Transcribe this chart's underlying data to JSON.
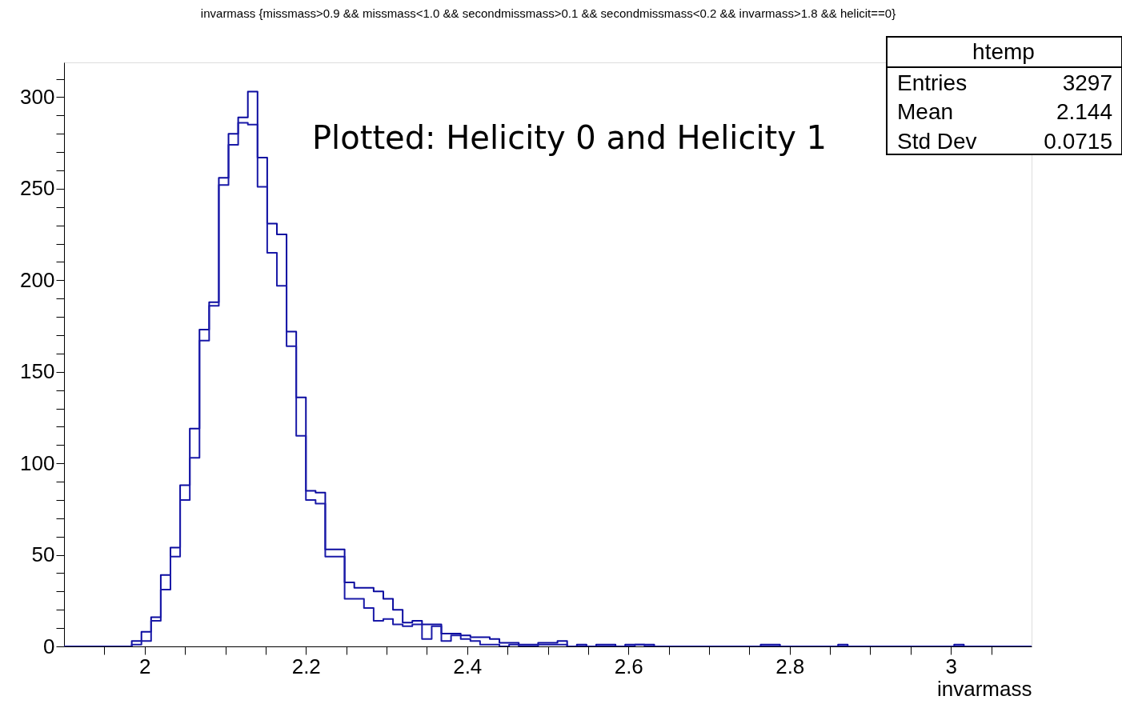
{
  "chart_data": {
    "type": "histogram",
    "title": "invarmass {missmass>0.9 && missmass<1.0 && secondmissmass>0.1 && secondmissmass<0.2 && invarmass>1.8 && helicit==0}",
    "xlabel": "invarmass",
    "bins": [
      1.9,
      1.912,
      1.924,
      1.936,
      1.948,
      1.96,
      1.972,
      1.984,
      1.996,
      2.008,
      2.02,
      2.032,
      2.044,
      2.056,
      2.068,
      2.08,
      2.092,
      2.104,
      2.116,
      2.128,
      2.14,
      2.152,
      2.164,
      2.176,
      2.188,
      2.2,
      2.212,
      2.224,
      2.236,
      2.248,
      2.26,
      2.272,
      2.284,
      2.296,
      2.308,
      2.32,
      2.332,
      2.344,
      2.356,
      2.368,
      2.38,
      2.392,
      2.404,
      2.416,
      2.428,
      2.44,
      2.452,
      2.464,
      2.476,
      2.488,
      2.5,
      2.512,
      2.524,
      2.536,
      2.548,
      2.56,
      2.572,
      2.584,
      2.596,
      2.608,
      2.62,
      2.632,
      2.644,
      2.656,
      2.668,
      2.68,
      2.692,
      2.704,
      2.716,
      2.728,
      2.74,
      2.752,
      2.764,
      2.776,
      2.788,
      2.8,
      2.812,
      2.824,
      2.836,
      2.848,
      2.86,
      2.872,
      2.884,
      2.896,
      2.908,
      2.92,
      2.932,
      2.944,
      2.956,
      2.968,
      2.98,
      2.992,
      3.004,
      3.016,
      3.028,
      3.04,
      3.052,
      3.064,
      3.076,
      3.088,
      3.1
    ],
    "series": [
      {
        "color": "#0c0ca0",
        "values": [
          0,
          0,
          0,
          0,
          0,
          0,
          0,
          3,
          8,
          16,
          39,
          54,
          88,
          119,
          173,
          188,
          256,
          280,
          289,
          303,
          267,
          231,
          225,
          172,
          136,
          85,
          84,
          53,
          53,
          35,
          32,
          32,
          30,
          26,
          20,
          13,
          14,
          12,
          12,
          7,
          7,
          6,
          5,
          5,
          4,
          2,
          2,
          1,
          1,
          2,
          2,
          3,
          0,
          1,
          0,
          1,
          1,
          0,
          1,
          1,
          1,
          0,
          0,
          0,
          0,
          0,
          0,
          0,
          0,
          0,
          0,
          0,
          1,
          1,
          0,
          0,
          0,
          0,
          0,
          0,
          1,
          0,
          0,
          0,
          0,
          0,
          0,
          0,
          0,
          0,
          0,
          0,
          1,
          0,
          0,
          0,
          0,
          0,
          0,
          0
        ]
      },
      {
        "color": "#1a1aa8",
        "values": [
          0,
          0,
          0,
          0,
          0,
          0,
          0,
          1,
          3,
          14,
          31,
          49,
          80,
          103,
          167,
          186,
          252,
          274,
          286,
          285,
          251,
          215,
          197,
          164,
          115,
          80,
          78,
          49,
          49,
          26,
          26,
          21,
          14,
          15,
          12,
          11,
          12,
          4,
          11,
          3,
          6,
          4,
          3,
          1,
          1,
          0,
          1,
          0,
          0,
          1,
          1,
          1,
          0,
          0,
          0,
          0,
          0,
          0,
          0,
          1,
          0,
          0,
          0,
          0,
          0,
          0,
          0,
          0,
          0,
          0,
          0,
          0,
          0,
          0,
          0,
          0,
          0,
          0,
          0,
          0,
          0,
          0,
          0,
          0,
          0,
          0,
          0,
          0,
          0,
          0,
          0,
          0,
          0,
          0,
          0,
          0,
          0,
          0,
          0,
          0
        ]
      }
    ],
    "xlim": [
      1.9,
      3.1
    ],
    "xticks": [
      {
        "value": 1.95,
        "label": null
      },
      2,
      {
        "value": 2.05,
        "label": null
      },
      {
        "value": 2.1,
        "label": null
      },
      {
        "value": 2.15,
        "label": null
      },
      2.2,
      {
        "value": 2.25,
        "label": null
      },
      {
        "value": 2.3,
        "label": null
      },
      {
        "value": 2.35,
        "label": null
      },
      2.4,
      {
        "value": 2.45,
        "label": null
      },
      {
        "value": 2.5,
        "label": null
      },
      {
        "value": 2.55,
        "label": null
      },
      2.6,
      {
        "value": 2.65,
        "label": null
      },
      {
        "value": 2.7,
        "label": null
      },
      {
        "value": 2.75,
        "label": null
      },
      2.8,
      {
        "value": 2.85,
        "label": null
      },
      {
        "value": 2.9,
        "label": null
      },
      {
        "value": 2.95,
        "label": null
      },
      3,
      {
        "value": 3.05,
        "label": null
      }
    ],
    "ylim": [
      0,
      319
    ],
    "yticks": [
      0,
      {
        "value": 10,
        "label": null
      },
      {
        "value": 20,
        "label": null
      },
      {
        "value": 30,
        "label": null
      },
      {
        "value": 40,
        "label": null
      },
      50,
      {
        "value": 60,
        "label": null
      },
      {
        "value": 70,
        "label": null
      },
      {
        "value": 80,
        "label": null
      },
      {
        "value": 90,
        "label": null
      },
      100,
      {
        "value": 110,
        "label": null
      },
      {
        "value": 120,
        "label": null
      },
      {
        "value": 130,
        "label": null
      },
      {
        "value": 140,
        "label": null
      },
      150,
      {
        "value": 160,
        "label": null
      },
      {
        "value": 170,
        "label": null
      },
      {
        "value": 180,
        "label": null
      },
      {
        "value": 190,
        "label": null
      },
      200,
      {
        "value": 210,
        "label": null
      },
      {
        "value": 220,
        "label": null
      },
      {
        "value": 230,
        "label": null
      },
      {
        "value": 240,
        "label": null
      },
      250,
      {
        "value": 260,
        "label": null
      },
      {
        "value": 270,
        "label": null
      },
      {
        "value": 280,
        "label": null
      },
      {
        "value": 290,
        "label": null
      },
      300,
      {
        "value": 310,
        "label": null
      }
    ],
    "grid": false,
    "legend": false,
    "annotations": [
      "Plotted: Helicity 0 and Helicity 1",
      "htemp",
      "Entries",
      "3297",
      "Mean",
      "2.144",
      "Std Dev",
      "0.0715"
    ]
  }
}
